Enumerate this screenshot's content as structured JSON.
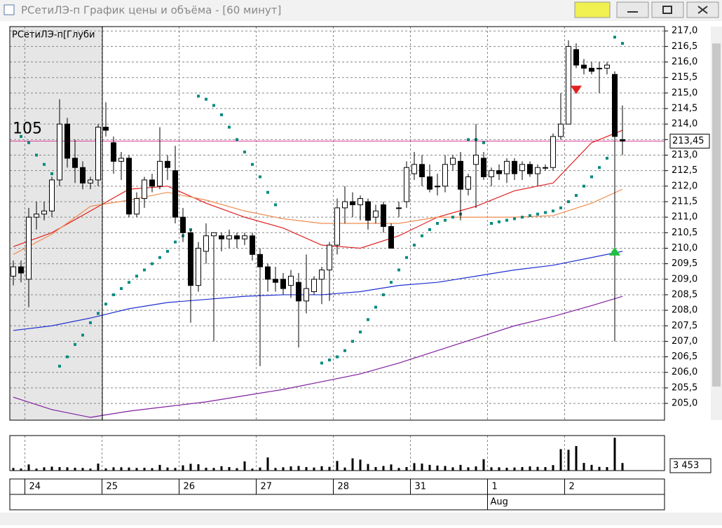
{
  "window_title": "РСетиЛЭ-п График цены и объёма - [60 минут]",
  "chart_data": {
    "type": "candlestick",
    "categories": [
      null,
      null,
      "24",
      null,
      null,
      null,
      null,
      null,
      null,
      null,
      null,
      null,
      "25",
      null,
      null,
      null,
      null,
      null,
      null,
      null,
      null,
      null,
      "26",
      null,
      null,
      null,
      null,
      null,
      null,
      null,
      null,
      null,
      "27",
      null,
      null,
      null,
      null,
      null,
      null,
      null,
      null,
      null,
      "28",
      null,
      null,
      null,
      null,
      null,
      null,
      null,
      null,
      null,
      "31",
      null,
      null,
      null,
      null,
      null,
      null,
      null,
      null,
      null,
      "1",
      null,
      null,
      null,
      null,
      null,
      null,
      null,
      null,
      null,
      "2",
      null,
      null,
      null,
      null,
      null,
      null,
      null
    ],
    "secondary_categories": [
      null,
      null,
      null,
      null,
      null,
      null,
      null,
      null,
      null,
      null,
      null,
      null,
      null,
      null,
      null,
      null,
      null,
      null,
      null,
      null,
      null,
      null,
      null,
      null,
      null,
      null,
      null,
      null,
      null,
      null,
      null,
      null,
      null,
      null,
      null,
      null,
      null,
      null,
      null,
      null,
      null,
      null,
      null,
      null,
      null,
      null,
      null,
      null,
      null,
      null,
      null,
      null,
      null,
      null,
      null,
      null,
      null,
      null,
      null,
      null,
      null,
      null,
      "Aug",
      null,
      null,
      null,
      null,
      null,
      null,
      null,
      null,
      null,
      null,
      null,
      null,
      null,
      null,
      null,
      null,
      null
    ],
    "candles": {
      "open": [
        209.1,
        209.4,
        209.0,
        211.0,
        211.1,
        211.2,
        212.2,
        214.0,
        212.9,
        212.6,
        212.1,
        212.2,
        213.9,
        213.4,
        212.8,
        212.9,
        211.1,
        211.6,
        212.2,
        212.0,
        212.8,
        212.5,
        211.0,
        210.5,
        208.8,
        209.9,
        210.4,
        210.4,
        210.3,
        210.4,
        210.3,
        210.4,
        209.8,
        209.4,
        209.0,
        209.0,
        208.8,
        208.9,
        208.3,
        208.6,
        209.0,
        209.3,
        210.1,
        211.3,
        211.5,
        211.4,
        211.5,
        211.0,
        211.4,
        210.7,
        211.3,
        211.5,
        212.4,
        212.7,
        212.3,
        212.0,
        212.0,
        212.7,
        212.8,
        211.9,
        212.7,
        212.9,
        212.3,
        212.5,
        212.4,
        212.8,
        212.5,
        212.7,
        212.4,
        212.6,
        212.6,
        213.6,
        214.0,
        216.4,
        215.9,
        215.8,
        215.8,
        215.8,
        215.6,
        213.5
      ],
      "high": [
        209.6,
        209.6,
        211.3,
        211.5,
        211.5,
        212.3,
        214.8,
        214.2,
        213.5,
        212.8,
        212.3,
        214.0,
        214.7,
        213.6,
        213.1,
        213.0,
        211.8,
        212.3,
        212.4,
        213.9,
        213.0,
        213.3,
        211.3,
        210.6,
        210.2,
        210.8,
        210.5,
        210.5,
        210.6,
        210.5,
        210.5,
        210.5,
        210.0,
        209.5,
        209.4,
        209.2,
        209.3,
        209.2,
        209.8,
        209.1,
        209.4,
        210.2,
        211.6,
        212.0,
        211.8,
        211.7,
        211.6,
        211.4,
        211.5,
        210.8,
        211.5,
        212.8,
        213.1,
        213.0,
        212.7,
        212.4,
        213.0,
        213.0,
        213.1,
        212.4,
        214.0,
        213.1,
        212.6,
        212.7,
        212.9,
        212.9,
        212.8,
        212.8,
        212.7,
        212.7,
        213.7,
        215.0,
        216.7,
        216.6,
        216.1,
        216.0,
        216.0,
        216.0,
        215.7,
        214.6
      ],
      "low": [
        208.8,
        208.9,
        208.1,
        210.6,
        210.9,
        211.0,
        212.0,
        212.6,
        212.1,
        211.9,
        211.9,
        212.0,
        213.6,
        212.4,
        212.2,
        211.0,
        211.0,
        211.3,
        211.8,
        211.9,
        212.2,
        210.8,
        210.2,
        207.6,
        208.6,
        209.5,
        207.0,
        209.9,
        210.0,
        210.0,
        210.1,
        209.6,
        206.2,
        208.6,
        208.6,
        208.5,
        208.4,
        206.8,
        207.9,
        208.5,
        208.2,
        208.3,
        209.8,
        210.8,
        211.0,
        210.9,
        210.6,
        210.8,
        210.5,
        210.0,
        211.0,
        211.3,
        212.2,
        212.0,
        211.8,
        211.7,
        211.8,
        212.5,
        210.9,
        211.7,
        211.3,
        212.2,
        212.0,
        212.2,
        212.1,
        212.2,
        212.2,
        212.3,
        212.0,
        212.5,
        212.5,
        213.5,
        214.0,
        215.8,
        215.6,
        215.6,
        215.0,
        215.6,
        207.0,
        213.0
      ],
      "close": [
        209.4,
        209.2,
        211.0,
        211.1,
        211.2,
        212.2,
        214.0,
        212.9,
        212.6,
        212.1,
        212.2,
        213.9,
        213.8,
        212.8,
        212.9,
        211.1,
        211.6,
        212.2,
        212.0,
        212.8,
        212.6,
        211.0,
        210.5,
        208.8,
        210.0,
        210.4,
        210.5,
        210.3,
        210.4,
        210.3,
        210.4,
        209.8,
        209.4,
        209.0,
        208.9,
        208.7,
        209.1,
        208.3,
        208.7,
        209.0,
        209.3,
        210.1,
        211.3,
        211.5,
        211.4,
        211.6,
        210.9,
        211.2,
        210.7,
        210.0,
        211.3,
        212.6,
        212.7,
        212.3,
        211.9,
        212.0,
        212.7,
        212.9,
        211.9,
        212.3,
        213.0,
        212.3,
        212.5,
        212.4,
        212.8,
        212.4,
        212.7,
        212.4,
        212.6,
        212.6,
        213.6,
        214.0,
        216.5,
        215.9,
        215.8,
        215.7,
        215.8,
        215.9,
        213.6,
        213.45
      ]
    },
    "ylim": [
      204.46,
      217.14
    ],
    "yticks": [
      {
        "value": 205,
        "label": "205,0"
      },
      {
        "value": 205.5,
        "label": "205,5"
      },
      {
        "value": 206,
        "label": "206,0"
      },
      {
        "value": 206.5,
        "label": "206,5"
      },
      {
        "value": 207,
        "label": "207,0"
      },
      {
        "value": 207.5,
        "label": "207,5"
      },
      {
        "value": 208,
        "label": "208,0"
      },
      {
        "value": 208.5,
        "label": "208,5"
      },
      {
        "value": 209,
        "label": "209,0"
      },
      {
        "value": 209.5,
        "label": "209,5"
      },
      {
        "value": 210,
        "label": "210,0"
      },
      {
        "value": 210.5,
        "label": "210,5"
      },
      {
        "value": 211,
        "label": "211,0"
      },
      {
        "value": 211.5,
        "label": "211,5"
      },
      {
        "value": 212,
        "label": "212,0"
      },
      {
        "value": 212.5,
        "label": "212,5"
      },
      {
        "value": 213,
        "label": "213,0"
      },
      {
        "value": 213.5,
        "label": "213,5"
      },
      {
        "value": 214,
        "label": "214,0"
      },
      {
        "value": 214.5,
        "label": "214,5"
      },
      {
        "value": 215,
        "label": "215,0"
      },
      {
        "value": 215.5,
        "label": "215,5"
      },
      {
        "value": 216,
        "label": "216,0"
      },
      {
        "value": 216.5,
        "label": "216,5"
      },
      {
        "value": 217,
        "label": "217,0"
      }
    ],
    "grid": true,
    "lines": {
      "x": [
        0,
        5,
        10,
        15,
        20,
        25,
        30,
        35,
        40,
        45,
        50,
        55,
        60,
        65,
        70,
        75,
        79
      ],
      "series": [
        {
          "color": "#e02020",
          "values": [
            210.05,
            210.5,
            211.2,
            211.9,
            212.0,
            211.45,
            211.0,
            210.65,
            210.1,
            210.0,
            210.4,
            211.0,
            211.35,
            211.85,
            212.1,
            213.4,
            213.8
          ]
        },
        {
          "color": "#f08c50",
          "values": [
            209.8,
            210.45,
            211.35,
            211.55,
            211.8,
            211.55,
            211.2,
            210.95,
            210.8,
            210.8,
            210.8,
            211.0,
            211.0,
            211.0,
            211.05,
            211.45,
            211.9
          ]
        },
        {
          "color": "#2030d0",
          "values": [
            207.35,
            207.5,
            207.75,
            208.05,
            208.25,
            208.35,
            208.45,
            208.5,
            208.5,
            208.6,
            208.8,
            208.9,
            209.1,
            209.3,
            209.45,
            209.7,
            209.9
          ]
        },
        {
          "color": "#8020a0",
          "values": [
            205.2,
            204.8,
            204.55,
            204.75,
            204.9,
            205.05,
            205.25,
            205.45,
            205.7,
            205.95,
            206.3,
            206.7,
            207.1,
            207.5,
            207.8,
            208.15,
            208.45
          ]
        }
      ]
    },
    "sar": {
      "color": "#008a80",
      "values": [
        null,
        213.6,
        213.4,
        213.0,
        212.7,
        212.4,
        206.2,
        206.5,
        206.9,
        207.2,
        207.6,
        207.9,
        208.2,
        208.5,
        208.7,
        208.9,
        209.1,
        209.3,
        209.5,
        209.7,
        209.9,
        210.2,
        210.4,
        210.6,
        214.9,
        214.8,
        214.6,
        214.3,
        213.9,
        213.5,
        213.1,
        212.7,
        212.3,
        211.8,
        211.4,
        null,
        null,
        null,
        null,
        null,
        206.3,
        206.4,
        206.5,
        206.7,
        207.0,
        207.3,
        207.7,
        208.1,
        208.5,
        208.9,
        209.3,
        209.7,
        210.1,
        210.4,
        210.6,
        210.8,
        210.9,
        211.0,
        211.1,
        213.5,
        213.5,
        213.4,
        210.8,
        210.85,
        210.9,
        210.95,
        211.0,
        211.05,
        211.1,
        211.15,
        211.2,
        211.3,
        211.5,
        211.7,
        212.0,
        212.3,
        212.6,
        212.9,
        216.8,
        216.6
      ]
    },
    "signals": [
      {
        "index": 73,
        "value": 215.1,
        "direction": "down",
        "color": "#e02020"
      },
      {
        "index": 78,
        "value": 209.9,
        "direction": "up",
        "color": "#20c040"
      }
    ],
    "depth": {
      "label": "РСетиЛЭ-п[Глуби",
      "quantity": 105,
      "price": 213.45,
      "color": "#e0409a"
    },
    "last_price": {
      "value": 213.45,
      "label": "213,45"
    },
    "volume": {
      "values": [
        1200,
        900,
        2800,
        900,
        1500,
        1800,
        1600,
        1500,
        1300,
        1200,
        900,
        3200,
        1000,
        1500,
        1500,
        1400,
        1200,
        1300,
        1100,
        2600,
        1400,
        1200,
        2400,
        3100,
        2900,
        1300,
        1200,
        2000,
        1600,
        1100,
        4200,
        900,
        1400,
        6000,
        1200,
        1500,
        1900,
        2100,
        1600,
        1400,
        2000,
        1700,
        4400,
        1400,
        5600,
        5000,
        3000,
        1600,
        2100,
        2800,
        1200,
        1600,
        3400,
        3200,
        2600,
        2300,
        2100,
        1500,
        2600,
        1500,
        1900,
        5200,
        1500,
        1500,
        1300,
        1400,
        1600,
        1900,
        1700,
        1600,
        2500,
        9800,
        9500,
        11200,
        3500,
        2600,
        1700,
        1600,
        15000,
        3453
      ],
      "ylim": [
        0,
        16000
      ],
      "color": "#000000",
      "last": {
        "value": 3453,
        "label": "3 453"
      }
    }
  }
}
